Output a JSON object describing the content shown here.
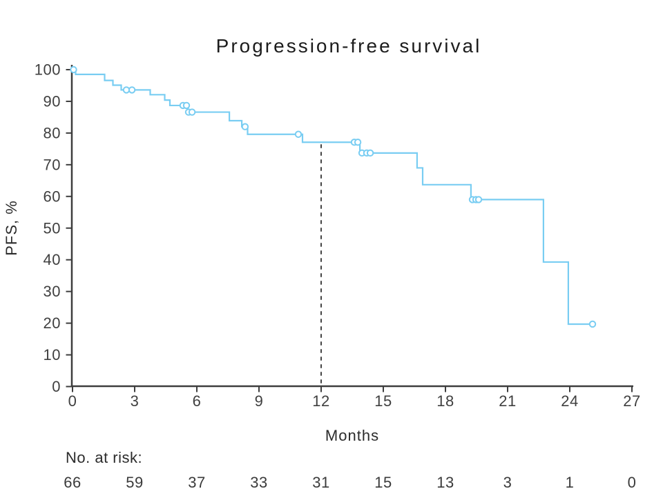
{
  "chart_data": {
    "type": "line",
    "subtype": "kaplan-meier-step",
    "title": "Progression-free survival",
    "xlabel": "Months",
    "ylabel": "PFS, %",
    "xlim": [
      0,
      27
    ],
    "ylim": [
      0,
      100
    ],
    "x_ticks": [
      0,
      3,
      6,
      9,
      12,
      15,
      18,
      21,
      24,
      27
    ],
    "y_ticks": [
      0,
      10,
      20,
      30,
      40,
      50,
      60,
      70,
      80,
      90,
      100
    ],
    "grid": false,
    "legend": "none",
    "landmark_month": 12,
    "colors": {
      "curve": "#79cdf2",
      "axis": "#3d3d3d",
      "title": "#1c1c1c",
      "tick_text": "#3f3f3f",
      "landmark_line": "#2e2e2e",
      "background": "#ffffff"
    },
    "steps": [
      {
        "t": 0.0,
        "pfs": 100.0
      },
      {
        "t": 0.15,
        "pfs": 98.5
      },
      {
        "t": 1.55,
        "pfs": 96.6
      },
      {
        "t": 1.95,
        "pfs": 95.1
      },
      {
        "t": 2.35,
        "pfs": 93.6
      },
      {
        "t": 3.75,
        "pfs": 92.1
      },
      {
        "t": 4.45,
        "pfs": 90.4
      },
      {
        "t": 4.7,
        "pfs": 88.7
      },
      {
        "t": 5.57,
        "pfs": 86.6
      },
      {
        "t": 7.57,
        "pfs": 83.9
      },
      {
        "t": 8.17,
        "pfs": 82.0
      },
      {
        "t": 8.45,
        "pfs": 79.6
      },
      {
        "t": 11.1,
        "pfs": 77.1
      },
      {
        "t": 13.87,
        "pfs": 73.7
      },
      {
        "t": 16.63,
        "pfs": 69.0
      },
      {
        "t": 16.9,
        "pfs": 63.7
      },
      {
        "t": 19.23,
        "pfs": 59.0
      },
      {
        "t": 22.73,
        "pfs": 39.3
      },
      {
        "t": 23.93,
        "pfs": 19.7
      }
    ],
    "curve_end_t": 25.1,
    "censors": [
      {
        "t": 0.05,
        "pfs": 100.0
      },
      {
        "t": 2.6,
        "pfs": 93.6
      },
      {
        "t": 2.87,
        "pfs": 93.6
      },
      {
        "t": 5.33,
        "pfs": 88.7
      },
      {
        "t": 5.5,
        "pfs": 88.7
      },
      {
        "t": 5.6,
        "pfs": 86.6
      },
      {
        "t": 5.77,
        "pfs": 86.6
      },
      {
        "t": 8.33,
        "pfs": 82.0
      },
      {
        "t": 10.9,
        "pfs": 79.6
      },
      {
        "t": 13.6,
        "pfs": 77.1
      },
      {
        "t": 13.77,
        "pfs": 77.1
      },
      {
        "t": 13.97,
        "pfs": 73.7
      },
      {
        "t": 14.2,
        "pfs": 73.7
      },
      {
        "t": 14.37,
        "pfs": 73.7
      },
      {
        "t": 19.3,
        "pfs": 59.0
      },
      {
        "t": 19.47,
        "pfs": 59.0
      },
      {
        "t": 19.6,
        "pfs": 59.0
      },
      {
        "t": 25.1,
        "pfs": 19.7
      }
    ],
    "risk_label": "No. at risk:",
    "risk_times": [
      0,
      3,
      6,
      9,
      12,
      15,
      18,
      21,
      24,
      27
    ],
    "risk_counts": [
      66,
      59,
      37,
      33,
      31,
      15,
      13,
      3,
      1,
      0
    ]
  }
}
